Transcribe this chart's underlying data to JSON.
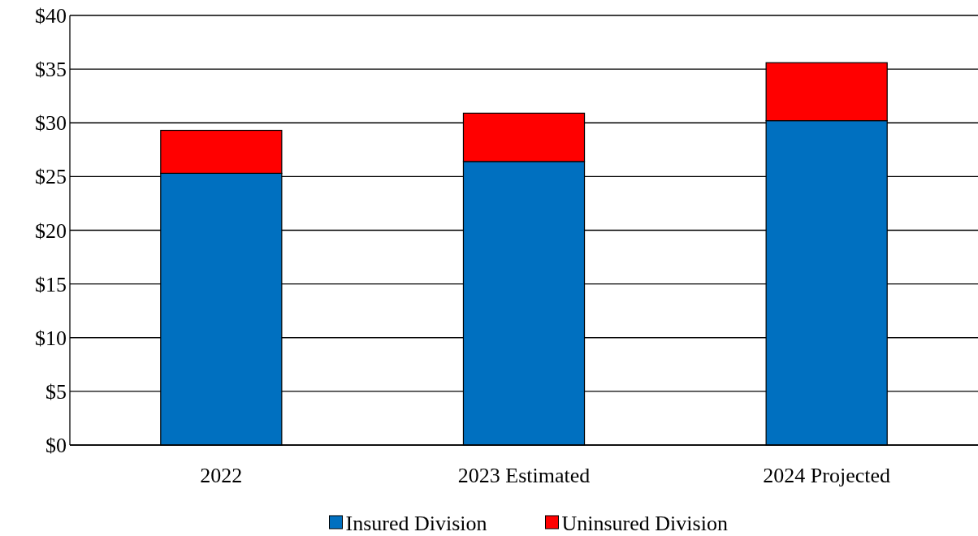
{
  "chart_data": {
    "type": "bar",
    "stacked": true,
    "categories": [
      "2022",
      "2023 Estimated",
      "2024 Projected"
    ],
    "series": [
      {
        "name": "Insured Division",
        "color": "#0070c0",
        "values": [
          25.3,
          26.4,
          30.2
        ]
      },
      {
        "name": "Uninsured Division",
        "color": "#ff0000",
        "values": [
          4.0,
          4.5,
          5.4
        ]
      }
    ],
    "ylim": [
      0,
      40
    ],
    "yticks": [
      {
        "value": 0,
        "label": "$0"
      },
      {
        "value": 5,
        "label": "$5"
      },
      {
        "value": 10,
        "label": "$10"
      },
      {
        "value": 15,
        "label": "$15"
      },
      {
        "value": 20,
        "label": "$20"
      },
      {
        "value": 25,
        "label": "$25"
      },
      {
        "value": 30,
        "label": "$30"
      },
      {
        "value": 35,
        "label": "$35"
      },
      {
        "value": 40,
        "label": "$40"
      }
    ],
    "grid": "y",
    "legend": "bottom"
  }
}
